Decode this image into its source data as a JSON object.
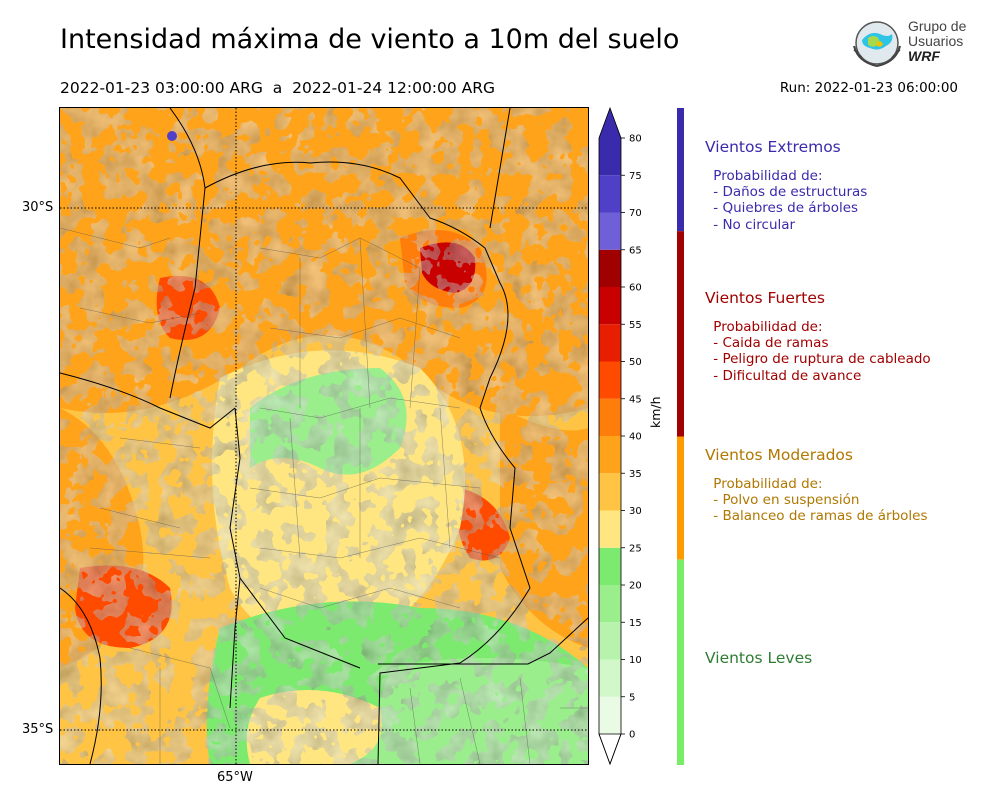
{
  "header": {
    "title": "Intensidad máxima de viento a 10m del suelo",
    "period": "2022-01-23 03:00:00 ARG  a  2022-01-24 12:00:00 ARG",
    "run": "Run: 2022-01-23 06:00:00"
  },
  "logo": {
    "line1": "Grupo de",
    "line2": "Usuarios",
    "line3": "WRF"
  },
  "map": {
    "lat_labels": [
      "30°S",
      "35°S"
    ],
    "lon_labels": [
      "65°W"
    ],
    "grid": "dotted"
  },
  "colorbar": {
    "unit": "km/h",
    "ticks": [
      "0",
      "5",
      "10",
      "15",
      "20",
      "25",
      "30",
      "35",
      "40",
      "45",
      "50",
      "55",
      "60",
      "65",
      "70",
      "75",
      "80"
    ],
    "bins": [
      {
        "from": 0,
        "to": 5,
        "color": "#e9fbe4"
      },
      {
        "from": 5,
        "to": 10,
        "color": "#d2f8c9"
      },
      {
        "from": 10,
        "to": 15,
        "color": "#b8f3ad"
      },
      {
        "from": 15,
        "to": 20,
        "color": "#9aee8c"
      },
      {
        "from": 20,
        "to": 25,
        "color": "#7cea6f"
      },
      {
        "from": 25,
        "to": 30,
        "color": "#ffe680"
      },
      {
        "from": 30,
        "to": 35,
        "color": "#ffc444"
      },
      {
        "from": 35,
        "to": 40,
        "color": "#ffa31a"
      },
      {
        "from": 40,
        "to": 45,
        "color": "#ff7d0a"
      },
      {
        "from": 45,
        "to": 50,
        "color": "#ff4b00"
      },
      {
        "from": 50,
        "to": 55,
        "color": "#e81e00"
      },
      {
        "from": 55,
        "to": 60,
        "color": "#c80000"
      },
      {
        "from": 60,
        "to": 65,
        "color": "#a00000"
      },
      {
        "from": 65,
        "to": 70,
        "color": "#7060d8"
      },
      {
        "from": 70,
        "to": 75,
        "color": "#5040c8"
      },
      {
        "from": 75,
        "to": 80,
        "color": "#3a2aac"
      }
    ],
    "under_color": "#ffffff",
    "over_color": "#3a2aac"
  },
  "categories": [
    {
      "title": "Vientos Extremos",
      "color": "#3a2aac",
      "from": 65,
      "to": 80,
      "sub": " Probabilidad de:\n - Daños de estructuras\n - Quiebres de árboles\n - No circular"
    },
    {
      "title": "Vientos Fuertes",
      "color": "#a00000",
      "from": 40,
      "to": 65,
      "sub": " Probabilidad de:\n - Caida de ramas\n - Peligro de ruptura de cableado\n - Dificultad de avance"
    },
    {
      "title": "Vientos Moderados",
      "color": "#b07800",
      "from": 25,
      "to": 40,
      "sub": " Probabilidad de:\n - Polvo en suspensión\n - Balanceo de ramas de árboles"
    },
    {
      "title": "Vientos Leves",
      "color": "#2e7d32",
      "from": 0,
      "to": 25,
      "sub": ""
    }
  ],
  "category_bar_colors": [
    "#3a2aac",
    "#a00000",
    "#ff9a00",
    "#77ee66"
  ]
}
